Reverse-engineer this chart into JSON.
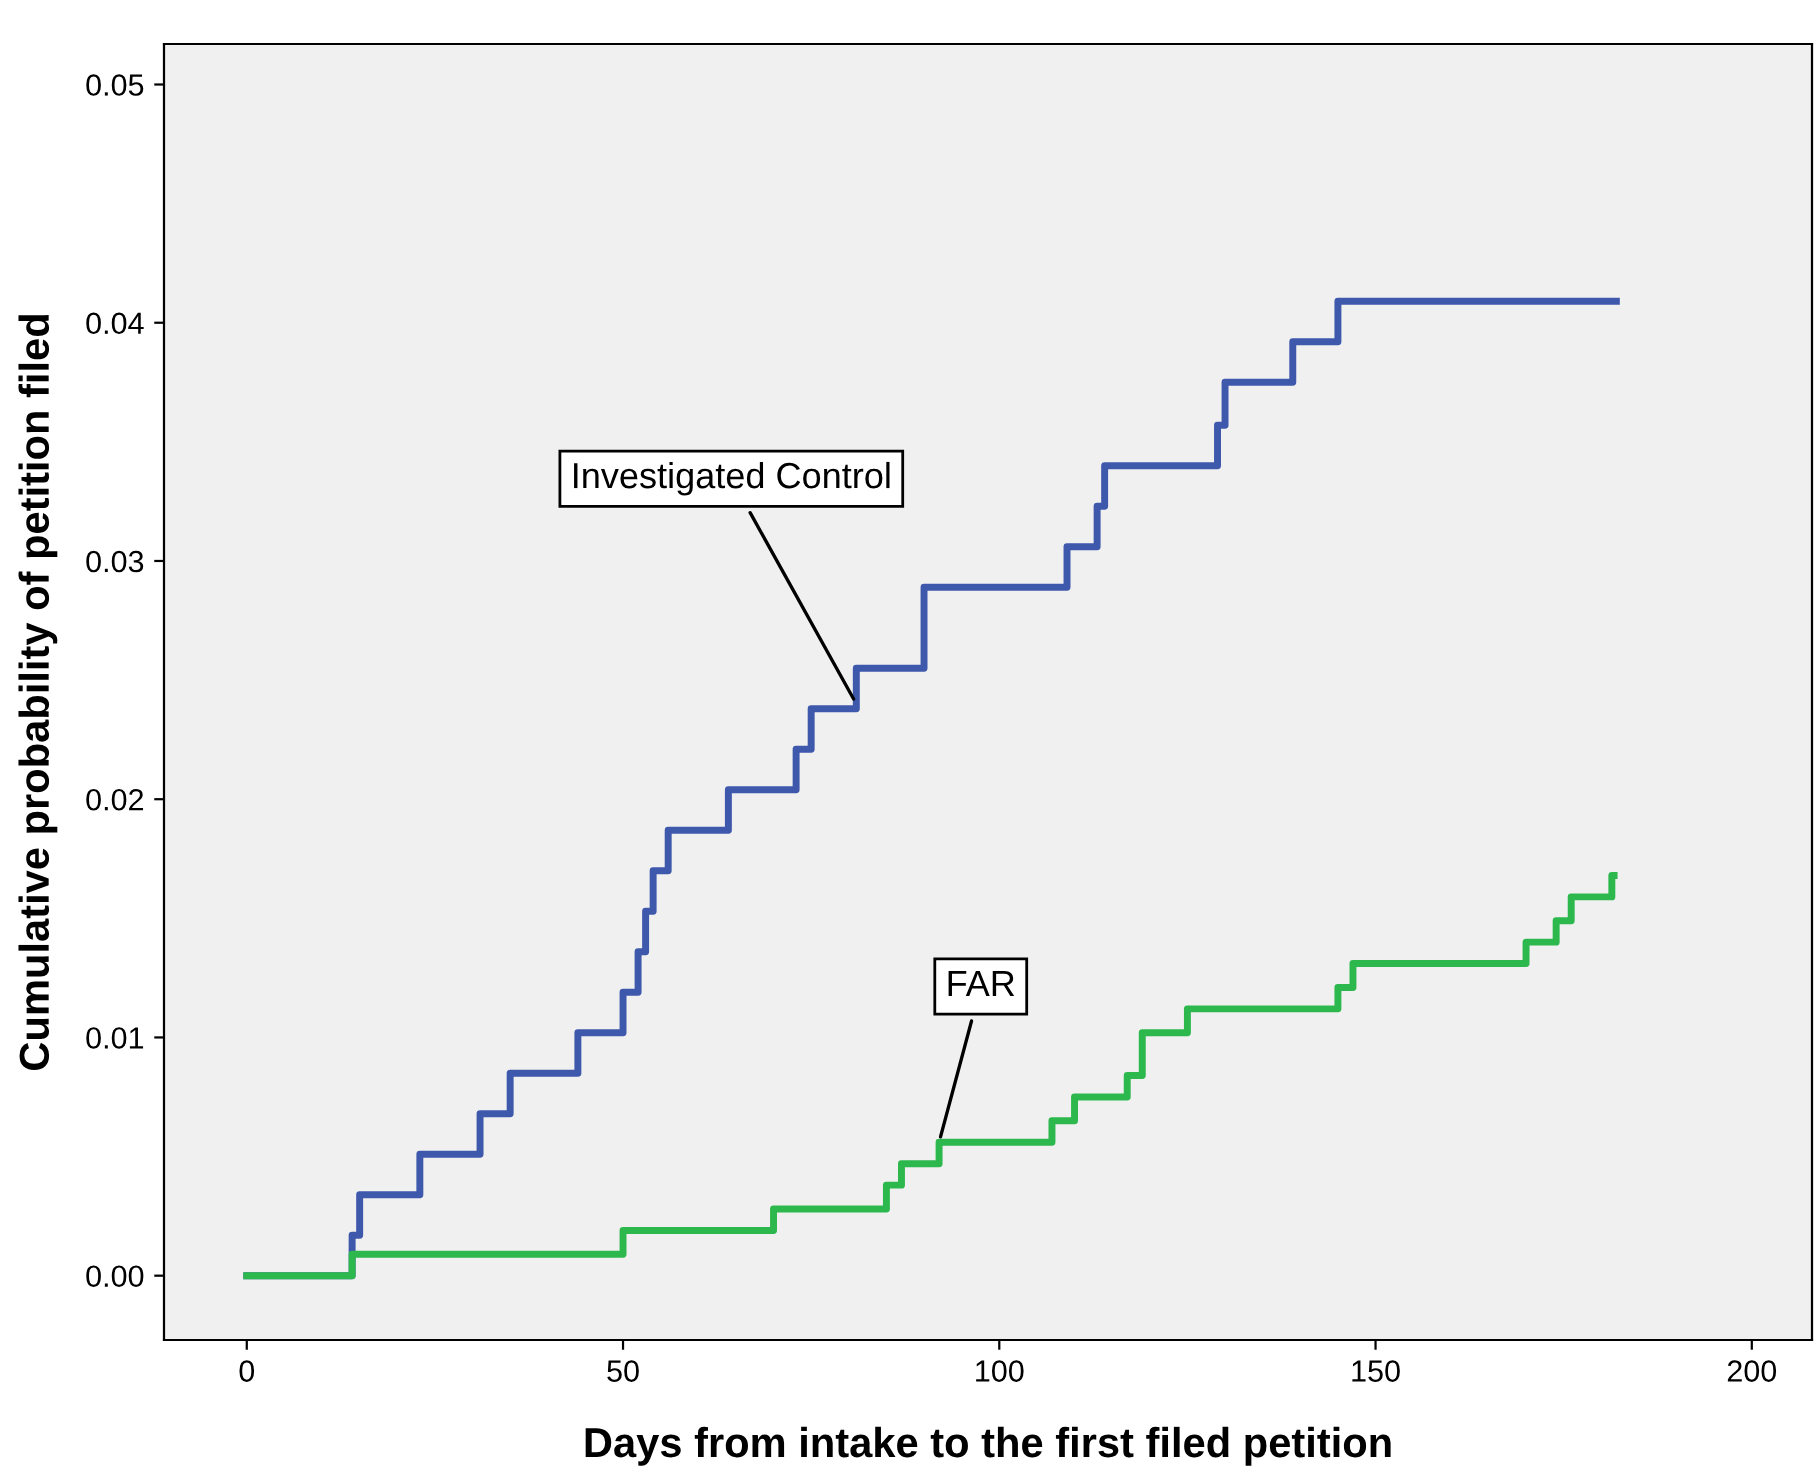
{
  "chart_data": {
    "type": "step",
    "xlabel": "Days from intake to the first filed petition",
    "ylabel": "Cumulative probability of petition filed",
    "xlim": [
      -11,
      208
    ],
    "xticks": [
      0,
      50,
      100,
      150,
      200
    ],
    "ylim": [
      -0.0027,
      0.0517
    ],
    "yticks": [
      {
        "value": 0,
        "label": "0.00"
      },
      {
        "value": 0.01,
        "label": "0.01"
      },
      {
        "value": 0.02,
        "label": "0.02"
      },
      {
        "value": 0.03,
        "label": "0.03"
      },
      {
        "value": 0.04,
        "label": "0.04"
      },
      {
        "value": 0.05,
        "label": "0.05"
      }
    ],
    "grid": false,
    "legend": false,
    "series": [
      {
        "color": "#3e58ac",
        "x": [
          0,
          14,
          15,
          23,
          31,
          35,
          44,
          50,
          52,
          53,
          54,
          56,
          64,
          73,
          75,
          81,
          90,
          109,
          113,
          114,
          129,
          130,
          139,
          145,
          182
        ],
        "values": [
          0,
          0.0017,
          0.0034,
          0.0051,
          0.0068,
          0.0085,
          0.0102,
          0.0119,
          0.0136,
          0.0153,
          0.017,
          0.0187,
          0.0204,
          0.0221,
          0.0238,
          0.0255,
          0.0289,
          0.0306,
          0.0323,
          0.034,
          0.0357,
          0.0375,
          0.0392,
          0.0409,
          0.0409
        ]
      },
      {
        "color": "#2db84d",
        "x": [
          0,
          14,
          50,
          70,
          85,
          87,
          92,
          107,
          110,
          117,
          119,
          125,
          145,
          147,
          170,
          174,
          176,
          181.4,
          181.7
        ],
        "values": [
          0,
          0.0009,
          0.0019,
          0.0028,
          0.0038,
          0.0047,
          0.0056,
          0.0065,
          0.0075,
          0.0084,
          0.0102,
          0.0112,
          0.0121,
          0.0131,
          0.014,
          0.0149,
          0.0159,
          0.0168,
          0.0168
        ]
      }
    ],
    "annotations": [
      {
        "text": "Investigated Control",
        "x": 81,
        "y": 0.024
      },
      {
        "text": "FAR",
        "x": 92,
        "y": 0.0056
      }
    ]
  }
}
